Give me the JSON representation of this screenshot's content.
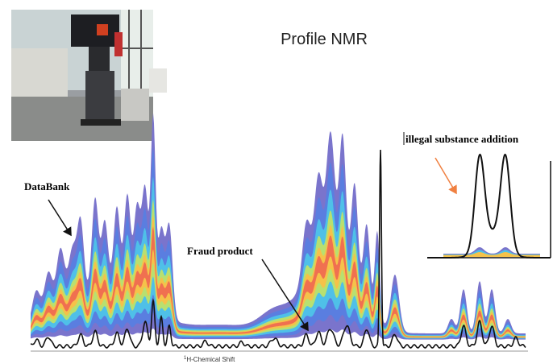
{
  "title": "Profile NMR",
  "annotations": {
    "illegal": "illegal substance addition",
    "databank": "DataBank",
    "fraud": "Fraud product"
  },
  "axis_label": {
    "superscript": "1",
    "text": "H-Chemical Shift"
  }
}
